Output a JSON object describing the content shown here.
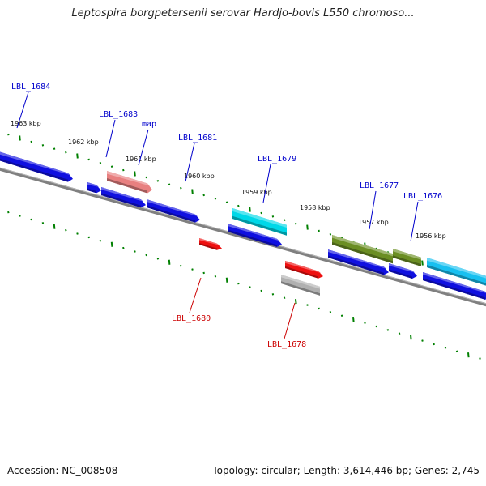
{
  "title": "Leptospira borgpetersenii serovar Hardjo-bovis L550 chromoso...",
  "accession_text": "Accession: NC_008508",
  "summary_text": "Topology: circular; Length: 3,614,446 bp; Genes: 2,745",
  "colors": {
    "backbone": "#808080",
    "tick": "#008000",
    "upper_label": "#0000cc",
    "lower_label": "#cc0000",
    "kbp_label": "#111111"
  },
  "kbp_markers": [
    {
      "label": "1963 kbp"
    },
    {
      "label": "1962 kbp"
    },
    {
      "label": "1961 kbp"
    },
    {
      "label": "1960 kbp"
    },
    {
      "label": "1959 kbp"
    },
    {
      "label": "1958 kbp"
    },
    {
      "label": "1957 kbp"
    },
    {
      "label": "1956 kbp"
    }
  ],
  "genes": [
    {
      "name": "lbl-1684-blue",
      "color": "#1010e0",
      "label": ""
    },
    {
      "name": "small-blue-1",
      "color": "#1010e0",
      "label": ""
    },
    {
      "name": "lbl-1683-pink",
      "color": "#e88080",
      "label": "LBL_1683"
    },
    {
      "name": "blue-2",
      "color": "#1010e0",
      "label": ""
    },
    {
      "name": "lbl-1681-blue",
      "color": "#1010e0",
      "label": "LBL_1681"
    },
    {
      "name": "lbl-1679-cyan",
      "color": "#00d8e8",
      "label": "LBL_1679"
    },
    {
      "name": "blue-3",
      "color": "#1010e0",
      "label": ""
    },
    {
      "name": "lbl-1677-olive",
      "color": "#6b8e23",
      "label": "LBL_1677"
    },
    {
      "name": "lbl-1676-olive",
      "color": "#6b8e23",
      "label": "LBL_1676"
    },
    {
      "name": "blue-4",
      "color": "#1010e0",
      "label": ""
    },
    {
      "name": "blue-5",
      "color": "#1010e0",
      "label": ""
    },
    {
      "name": "cyan-right",
      "color": "#18c0f0",
      "label": ""
    },
    {
      "name": "blue-6",
      "color": "#1010e0",
      "label": ""
    },
    {
      "name": "lbl-1680-red",
      "color": "#ee1010",
      "label": "LBL_1680"
    },
    {
      "name": "lbl-1678-red",
      "color": "#ee1010",
      "label": ""
    },
    {
      "name": "lbl-1678-gray",
      "color": "#b0b0b0",
      "label": "LBL_1678"
    }
  ],
  "callouts": [
    {
      "name": "LBL_1684",
      "label": "LBL_1684",
      "strand": "upper"
    },
    {
      "name": "LBL_1683",
      "label": "LBL_1683",
      "strand": "upper"
    },
    {
      "name": "map",
      "label": "map",
      "strand": "upper"
    },
    {
      "name": "LBL_1681",
      "label": "LBL_1681",
      "strand": "upper"
    },
    {
      "name": "LBL_1679",
      "label": "LBL_1679",
      "strand": "upper"
    },
    {
      "name": "LBL_1677",
      "label": "LBL_1677",
      "strand": "upper"
    },
    {
      "name": "LBL_1676",
      "label": "LBL_1676",
      "strand": "upper"
    },
    {
      "name": "LBL_1680",
      "label": "LBL_1680",
      "strand": "lower"
    },
    {
      "name": "LBL_1678",
      "label": "LBL_1678",
      "strand": "lower"
    }
  ]
}
